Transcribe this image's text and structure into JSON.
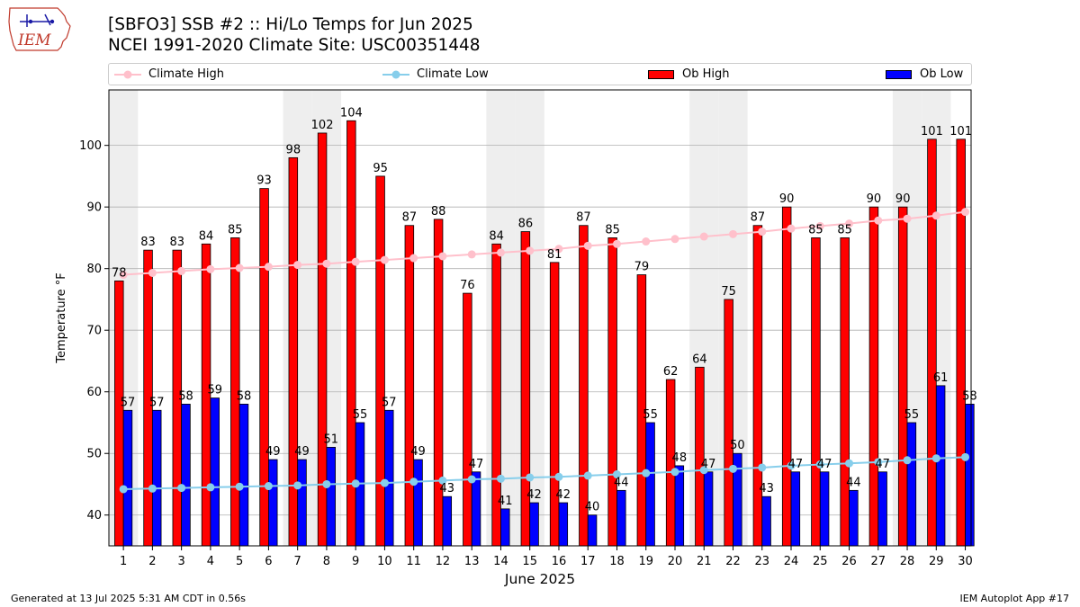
{
  "header": {
    "title": "[SBFO3] SSB #2 :: Hi/Lo Temps for Jun 2025",
    "subtitle": "NCEI 1991-2020 Climate Site: USC00351448",
    "logo_text": "IEM"
  },
  "footer": {
    "left": "Generated at 13 Jul 2025 5:31 AM CDT in 0.56s",
    "right": "IEM Autoplot App #17"
  },
  "colors": {
    "ob_high": "#ff0000",
    "ob_low": "#0000ff",
    "climate_high": "#ffc0cb",
    "climate_low": "#87ceeb",
    "weekend_shade": "#eeeeee",
    "grid": "#b0b0b0"
  },
  "chart_data": {
    "type": "bar",
    "xlabel": "June 2025",
    "ylabel": "Temperature °F",
    "ylim": [
      35,
      109
    ],
    "yticks": [
      40,
      50,
      60,
      70,
      80,
      90,
      100
    ],
    "grid": "horizontal",
    "legend_position": "top",
    "categories": [
      "1",
      "2",
      "3",
      "4",
      "5",
      "6",
      "7",
      "8",
      "9",
      "10",
      "11",
      "12",
      "13",
      "14",
      "15",
      "16",
      "17",
      "18",
      "19",
      "20",
      "21",
      "22",
      "23",
      "24",
      "25",
      "26",
      "27",
      "28",
      "29",
      "30"
    ],
    "shaded_days": [
      1,
      7,
      8,
      14,
      15,
      21,
      22,
      28,
      29
    ],
    "series": [
      {
        "name": "Ob High",
        "kind": "bar",
        "values": [
          78,
          83,
          83,
          84,
          85,
          93,
          98,
          102,
          104,
          95,
          87,
          88,
          76,
          84,
          86,
          81,
          87,
          85,
          79,
          62,
          64,
          75,
          87,
          90,
          85,
          85,
          90,
          90,
          101,
          101
        ]
      },
      {
        "name": "Ob Low",
        "kind": "bar",
        "values": [
          57,
          57,
          58,
          59,
          58,
          49,
          49,
          51,
          55,
          57,
          49,
          43,
          47,
          41,
          42,
          42,
          40,
          44,
          55,
          48,
          47,
          50,
          43,
          47,
          47,
          44,
          47,
          55,
          61,
          58
        ]
      },
      {
        "name": "Climate High",
        "kind": "line",
        "values": [
          79.0,
          79.3,
          79.6,
          79.9,
          80.1,
          80.3,
          80.6,
          80.8,
          81.1,
          81.4,
          81.7,
          82.0,
          82.3,
          82.6,
          82.9,
          83.2,
          83.7,
          84.0,
          84.4,
          84.8,
          85.2,
          85.6,
          86.0,
          86.5,
          86.9,
          87.3,
          87.8,
          88.1,
          88.6,
          89.2
        ]
      },
      {
        "name": "Climate Low",
        "kind": "line",
        "values": [
          44.2,
          44.3,
          44.4,
          44.5,
          44.6,
          44.7,
          44.8,
          45.0,
          45.1,
          45.2,
          45.4,
          45.6,
          45.8,
          45.9,
          46.1,
          46.2,
          46.4,
          46.6,
          46.8,
          47.0,
          47.3,
          47.5,
          47.7,
          48.0,
          48.2,
          48.4,
          48.6,
          48.9,
          49.2,
          49.4
        ]
      }
    ]
  }
}
